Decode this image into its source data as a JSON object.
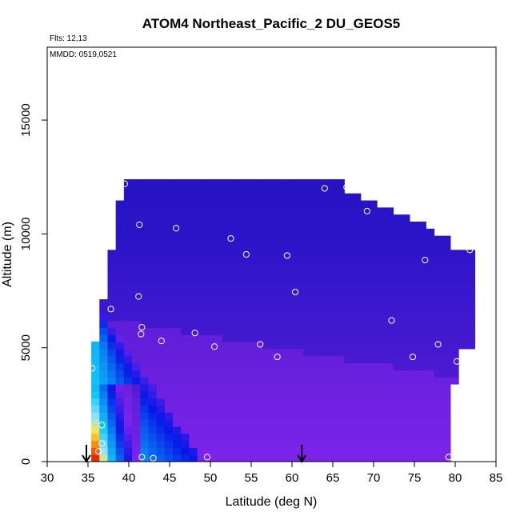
{
  "chart_data": {
    "type": "heatmap",
    "title": "ATOM4 Northeast_Pacific_2 DU_GEOS5",
    "annotations": {
      "flights": "Flts: 12,13",
      "dates": "MMDD: 0519,0521"
    },
    "xlabel": "Latitude (deg N)",
    "ylabel": "Altitude (m)",
    "xlim": [
      30,
      85
    ],
    "ylim": [
      0,
      18200
    ],
    "x_ticks": [
      30,
      35,
      40,
      45,
      50,
      55,
      60,
      65,
      70,
      75,
      80,
      85
    ],
    "y_ticks": [
      0,
      5000,
      10000,
      15000
    ],
    "grid": false,
    "legend": "none",
    "colors": {
      "background_low": "#7b22e6",
      "background_high": "#1a0fb0",
      "high_value_red": "#d81e05",
      "high_value_yellow": "#ffe64a",
      "mid_value_cyan": "#12c8f5",
      "marker": "#ffffff",
      "arrow": "#000000"
    },
    "arrows_at_latitude": [
      34.8,
      61.2
    ],
    "points": [
      {
        "lat": 39.5,
        "alt": 12200
      },
      {
        "lat": 64.0,
        "alt": 12000
      },
      {
        "lat": 66.7,
        "alt": 12050
      },
      {
        "lat": 69.2,
        "alt": 11000
      },
      {
        "lat": 41.3,
        "alt": 10400
      },
      {
        "lat": 45.8,
        "alt": 10250
      },
      {
        "lat": 52.5,
        "alt": 9800
      },
      {
        "lat": 54.4,
        "alt": 9100
      },
      {
        "lat": 59.4,
        "alt": 9050
      },
      {
        "lat": 76.3,
        "alt": 8850
      },
      {
        "lat": 81.8,
        "alt": 9300
      },
      {
        "lat": 41.2,
        "alt": 7250
      },
      {
        "lat": 60.4,
        "alt": 7450
      },
      {
        "lat": 37.8,
        "alt": 6700
      },
      {
        "lat": 72.2,
        "alt": 6200
      },
      {
        "lat": 41.6,
        "alt": 5900
      },
      {
        "lat": 48.1,
        "alt": 5650
      },
      {
        "lat": 41.5,
        "alt": 5600
      },
      {
        "lat": 44.0,
        "alt": 5300
      },
      {
        "lat": 50.5,
        "alt": 5050
      },
      {
        "lat": 56.1,
        "alt": 5150
      },
      {
        "lat": 77.9,
        "alt": 5150
      },
      {
        "lat": 58.2,
        "alt": 4600
      },
      {
        "lat": 74.8,
        "alt": 4600
      },
      {
        "lat": 80.2,
        "alt": 4400
      },
      {
        "lat": 35.5,
        "alt": 4100
      },
      {
        "lat": 36.7,
        "alt": 1600
      },
      {
        "lat": 36.7,
        "alt": 800
      },
      {
        "lat": 36.3,
        "alt": 450
      },
      {
        "lat": 41.6,
        "alt": 200
      },
      {
        "lat": 43.0,
        "alt": 150
      },
      {
        "lat": 49.6,
        "alt": 200
      },
      {
        "lat": 79.2,
        "alt": 200
      }
    ]
  }
}
